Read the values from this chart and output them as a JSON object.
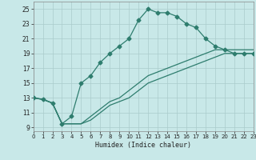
{
  "xlabel": "Humidex (Indice chaleur)",
  "x_values": [
    0,
    1,
    2,
    3,
    4,
    5,
    6,
    7,
    8,
    9,
    10,
    11,
    12,
    13,
    14,
    15,
    16,
    17,
    18,
    19,
    20,
    21,
    22,
    23
  ],
  "main_y": [
    13,
    12.8,
    12.3,
    9.5,
    10.5,
    15,
    16,
    17.8,
    19,
    20,
    21,
    23.5,
    25,
    24.5,
    24.5,
    24,
    23,
    22.5,
    21,
    20,
    19.5,
    19,
    19,
    19
  ],
  "line2_y": [
    13,
    12.8,
    12.3,
    9.5,
    9.5,
    9.5,
    10,
    11,
    12,
    12.5,
    13,
    14,
    15,
    15.5,
    16,
    16.5,
    17,
    17.5,
    18,
    18.5,
    19,
    19,
    19,
    19
  ],
  "line3_y": [
    13,
    12.8,
    12.3,
    9.5,
    9.5,
    9.5,
    10.5,
    11.5,
    12.5,
    13,
    14,
    15,
    16,
    16.5,
    17,
    17.5,
    18,
    18.5,
    19,
    19.5,
    19.5,
    19.5,
    19.5,
    19.5
  ],
  "xlim": [
    0,
    23
  ],
  "ylim": [
    8.5,
    26
  ],
  "yticks": [
    9,
    11,
    13,
    15,
    17,
    19,
    21,
    23,
    25
  ],
  "xticks": [
    0,
    1,
    2,
    3,
    4,
    5,
    6,
    7,
    8,
    9,
    10,
    11,
    12,
    13,
    14,
    15,
    16,
    17,
    18,
    19,
    20,
    21,
    22,
    23
  ],
  "line_color": "#2e7d6e",
  "bg_color": "#c8e8e8",
  "grid_color": "#aacccc",
  "marker": "D",
  "markersize": 2.5
}
